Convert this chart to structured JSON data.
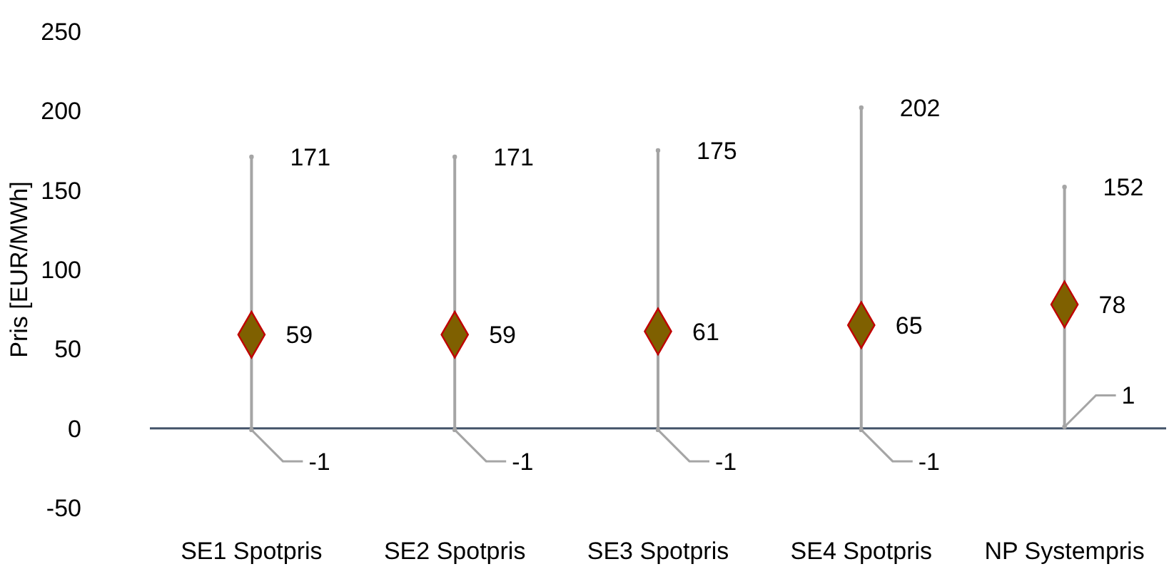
{
  "chart_data": {
    "type": "scatter",
    "ylabel": "Pris [EUR/MWh]",
    "categories": [
      "SE1 Spotpris",
      "SE2 Spotpris",
      "SE3 Spotpris",
      "SE4 Spotpris",
      "NP Systempris"
    ],
    "series": [
      {
        "values": [
          171,
          171,
          175,
          202,
          152
        ],
        "color": "#a5a5a5",
        "marker": "circle"
      },
      {
        "values": [
          -1,
          -1,
          -1,
          -1,
          1
        ],
        "color": "#a5a5a5",
        "marker": "circle"
      },
      {
        "values": [
          59,
          59,
          61,
          65,
          78
        ],
        "color": "#7f6000",
        "marker": "diamond"
      }
    ],
    "data_labels": true,
    "ylim": [
      -50,
      250
    ],
    "yticks": [
      -50,
      0,
      50,
      100,
      150,
      200,
      250
    ],
    "ref_lines": [
      {
        "axis": "y",
        "value": 0,
        "color": "#44546a"
      }
    ]
  }
}
